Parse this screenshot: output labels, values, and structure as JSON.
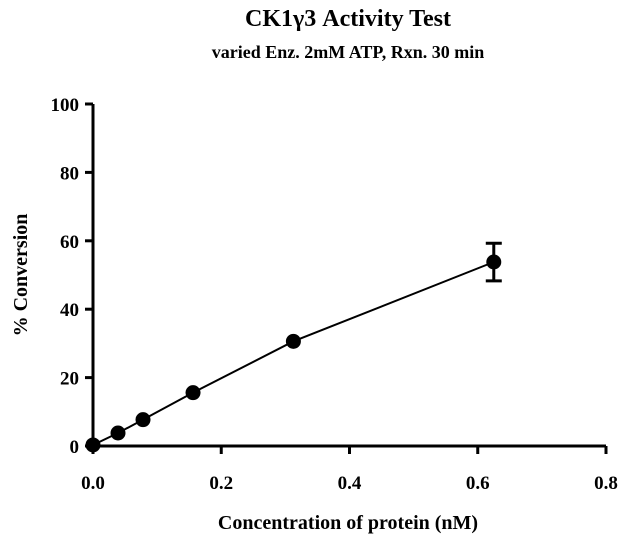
{
  "chart_data": {
    "type": "scatter",
    "title": "CK1γ3 Activity Test",
    "subtitle": "varied Enz. 2mM ATP, Rxn. 30 min",
    "xlabel": "Concentration of protein (nM)",
    "ylabel": "% Conversion",
    "xlim": [
      0,
      0.8
    ],
    "ylim": [
      0,
      100
    ],
    "x_ticks": [
      "0.0",
      "0.2",
      "0.4",
      "0.6",
      "0.8"
    ],
    "y_ticks": [
      "0",
      "20",
      "40",
      "60",
      "80",
      "100"
    ],
    "grid": false,
    "legend": "none",
    "series": [
      {
        "x": [
          0.0,
          0.039,
          0.078,
          0.156,
          0.3125,
          0.625
        ],
        "y": [
          0.3,
          3.8,
          7.7,
          15.6,
          30.6,
          53.8
        ],
        "error": [
          0,
          0,
          0,
          0,
          0,
          5.5
        ],
        "line": true,
        "marker": "filled-circle",
        "color": "#000000"
      }
    ]
  }
}
